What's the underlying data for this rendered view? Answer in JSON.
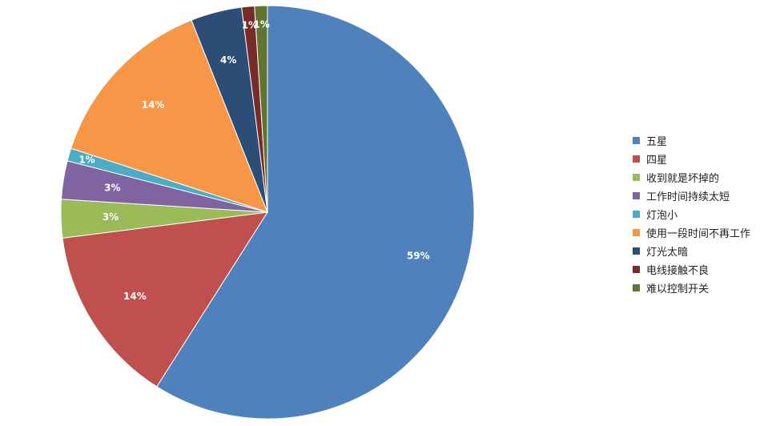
{
  "chart_data": {
    "type": "pie",
    "title": "",
    "legend_position": "right",
    "slices": [
      {
        "name": "五星",
        "value": 59,
        "label": "59%",
        "color": "#4F81BD"
      },
      {
        "name": "四星",
        "value": 14,
        "label": "14%",
        "color": "#C0504D"
      },
      {
        "name": "收到就是坏掉的",
        "value": 3,
        "label": "3%",
        "color": "#9BBB59"
      },
      {
        "name": "工作时间持续太短",
        "value": 3,
        "label": "3%",
        "color": "#8064A2"
      },
      {
        "name": "灯泡小",
        "value": 1,
        "label": "1%",
        "color": "#4BACC6"
      },
      {
        "name": "使用一段时间不再工作",
        "value": 14,
        "label": "14%",
        "color": "#F79646"
      },
      {
        "name": "灯光太暗",
        "value": 4,
        "label": "4%",
        "color": "#2C4D75"
      },
      {
        "name": "电线接触不良",
        "value": 1,
        "label": "1%",
        "color": "#772C2A"
      },
      {
        "name": "难以控制开关",
        "value": 1,
        "label": "1%",
        "color": "#5F7530"
      }
    ]
  }
}
